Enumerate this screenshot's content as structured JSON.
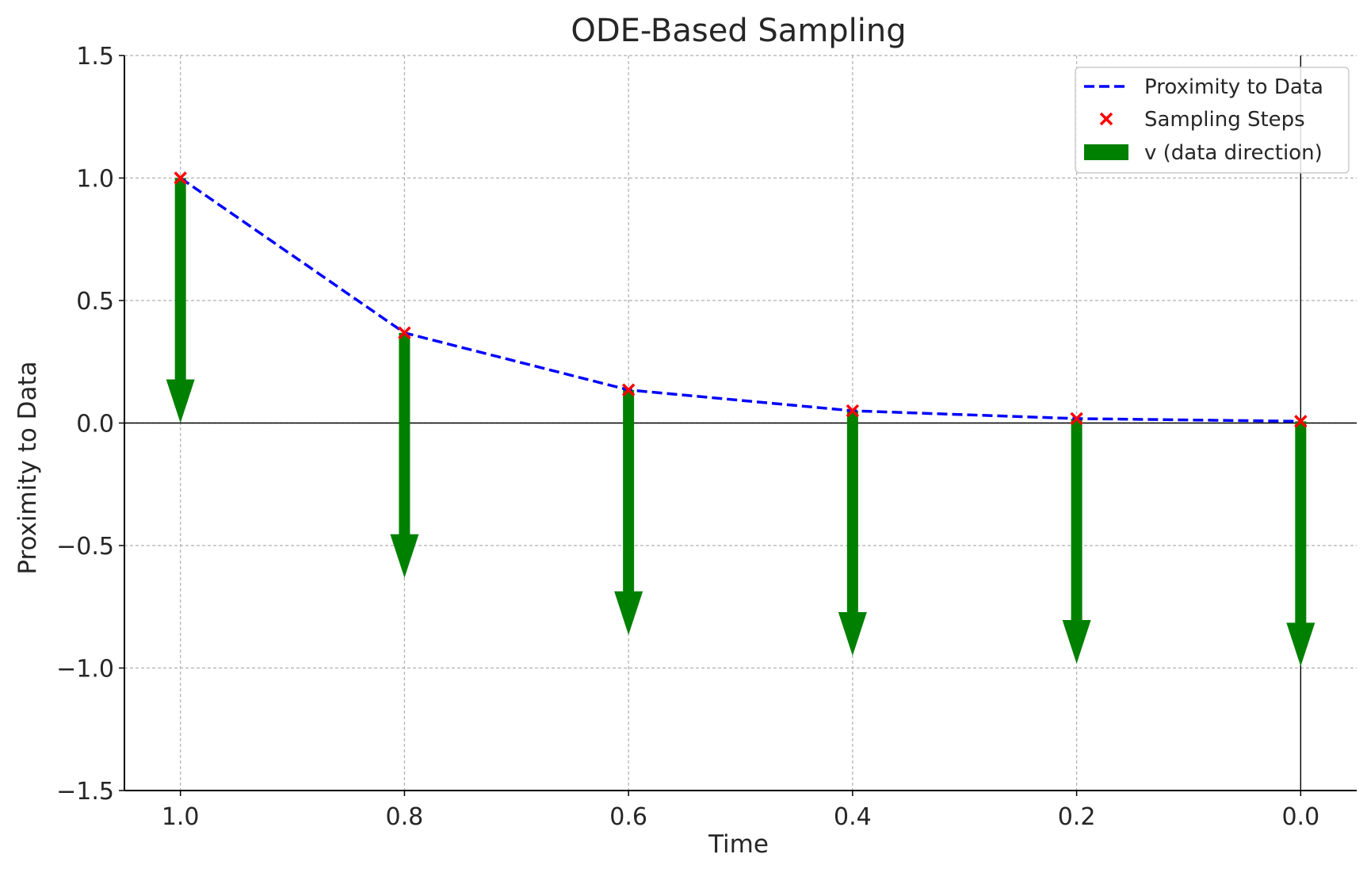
{
  "chart_data": {
    "type": "line",
    "title": "ODE-Based Sampling",
    "xlabel": "Time",
    "ylabel": "Proximity to Data",
    "xlim": [
      1.05,
      -0.05
    ],
    "ylim": [
      -1.5,
      1.5
    ],
    "x_inverted": true,
    "grid": true,
    "legend_position": "top-right",
    "x_ticks": [
      1.0,
      0.8,
      0.6,
      0.4,
      0.2,
      0.0
    ],
    "x_tick_labels": [
      "1.0",
      "0.8",
      "0.6",
      "0.4",
      "0.2",
      "0.0"
    ],
    "y_ticks": [
      1.5,
      1.0,
      0.5,
      0.0,
      -0.5,
      -1.0,
      -1.5
    ],
    "y_tick_labels": [
      "1.5",
      "1.0",
      "0.5",
      "0.0",
      "−0.5",
      "−1.0",
      "−1.5"
    ],
    "series": [
      {
        "name": "Proximity to Data",
        "kind": "line",
        "style": "dashed",
        "color": "#0000ff",
        "x": [
          1.0,
          0.8,
          0.6,
          0.4,
          0.2,
          0.0
        ],
        "y": [
          1.0,
          0.368,
          0.135,
          0.05,
          0.018,
          0.007
        ]
      },
      {
        "name": "Sampling Steps",
        "kind": "scatter",
        "marker": "x",
        "color": "#ff0000",
        "x": [
          1.0,
          0.8,
          0.6,
          0.4,
          0.2,
          0.0
        ],
        "y": [
          1.0,
          0.368,
          0.135,
          0.05,
          0.018,
          0.007
        ]
      },
      {
        "name": "v (data direction)",
        "kind": "quiver",
        "color": "#008000",
        "x": [
          1.0,
          0.8,
          0.6,
          0.4,
          0.2,
          0.0
        ],
        "y": [
          1.0,
          0.368,
          0.135,
          0.05,
          0.018,
          0.007
        ],
        "dy": [
          -1.0,
          -1.0,
          -1.0,
          -1.0,
          -1.0,
          -1.0
        ]
      }
    ],
    "reference_lines": {
      "horizontal_at_y": 0.0,
      "vertical_at_x": 0.0,
      "color": "#000000"
    }
  }
}
